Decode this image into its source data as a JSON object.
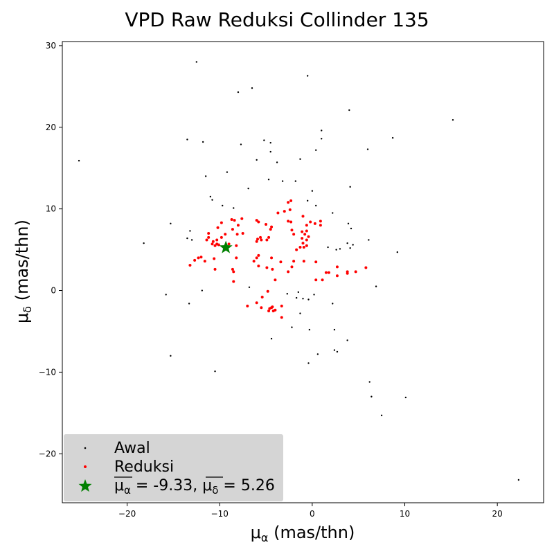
{
  "chart_data": {
    "type": "scatter",
    "title": "VPD Raw Reduksi Collinder 135",
    "xlabel": "μα (mas/thn)",
    "ylabel": "μδ (mas/thn)",
    "xlim": [
      -27,
      25
    ],
    "ylim": [
      -26,
      30.5
    ],
    "xticks": [
      -20,
      -10,
      0,
      10,
      20
    ],
    "yticks": [
      -20,
      -10,
      0,
      10,
      20,
      30
    ],
    "xtick_labels": [
      "−20",
      "−10",
      "0",
      "10",
      "20"
    ],
    "ytick_labels": [
      "−20",
      "−10",
      "0",
      "10",
      "20",
      "30"
    ],
    "grid": false,
    "legend_position": "lower-left",
    "colors": {
      "awal": "#000000",
      "reduksi": "#ff0000",
      "mean": "#008000",
      "legend_bg": "#d3d3d3"
    },
    "series": [
      {
        "name": "Awal",
        "marker": "point",
        "points": [
          [
            -12.5,
            28.0
          ],
          [
            -0.5,
            26.3
          ],
          [
            -8.0,
            24.3
          ],
          [
            -6.5,
            24.8
          ],
          [
            4.0,
            22.1
          ],
          [
            15.2,
            20.9
          ],
          [
            1.0,
            19.6
          ],
          [
            1.0,
            18.6
          ],
          [
            8.7,
            18.7
          ],
          [
            -13.5,
            18.5
          ],
          [
            -11.8,
            18.2
          ],
          [
            -5.2,
            18.4
          ],
          [
            -4.5,
            18.1
          ],
          [
            -7.7,
            17.9
          ],
          [
            -4.5,
            17.0
          ],
          [
            0.4,
            17.2
          ],
          [
            6.0,
            17.3
          ],
          [
            -25.2,
            15.9
          ],
          [
            -6.0,
            16.0
          ],
          [
            -3.8,
            15.7
          ],
          [
            -1.3,
            16.1
          ],
          [
            -9.2,
            14.5
          ],
          [
            -11.5,
            14.0
          ],
          [
            -4.7,
            13.6
          ],
          [
            -3.2,
            13.4
          ],
          [
            -1.8,
            13.4
          ],
          [
            -6.9,
            12.5
          ],
          [
            0.0,
            12.2
          ],
          [
            4.1,
            12.7
          ],
          [
            -11.0,
            11.5
          ],
          [
            -10.8,
            11.1
          ],
          [
            -9.7,
            10.4
          ],
          [
            -8.5,
            10.1
          ],
          [
            -0.5,
            11.0
          ],
          [
            0.4,
            10.4
          ],
          [
            2.2,
            9.5
          ],
          [
            -15.3,
            8.2
          ],
          [
            -13.2,
            7.3
          ],
          [
            -13.0,
            6.2
          ],
          [
            -13.5,
            6.4
          ],
          [
            -18.2,
            5.8
          ],
          [
            3.9,
            8.2
          ],
          [
            4.2,
            7.6
          ],
          [
            6.1,
            6.2
          ],
          [
            1.7,
            5.3
          ],
          [
            2.6,
            5.0
          ],
          [
            3.0,
            5.1
          ],
          [
            3.8,
            5.8
          ],
          [
            4.1,
            5.2
          ],
          [
            4.4,
            5.6
          ],
          [
            9.2,
            4.7
          ],
          [
            -15.8,
            -0.5
          ],
          [
            -11.9,
            0.0
          ],
          [
            -13.3,
            -1.6
          ],
          [
            -6.8,
            0.4
          ],
          [
            -2.7,
            -0.4
          ],
          [
            -1.5,
            -0.2
          ],
          [
            -1.7,
            -0.9
          ],
          [
            -1.0,
            -1.0
          ],
          [
            -0.4,
            -1.1
          ],
          [
            0.2,
            -0.5
          ],
          [
            2.2,
            -1.6
          ],
          [
            6.9,
            0.5
          ],
          [
            -15.3,
            -8.0
          ],
          [
            -10.5,
            -9.9
          ],
          [
            -4.4,
            -5.9
          ],
          [
            -2.2,
            -4.5
          ],
          [
            -1.3,
            -2.8
          ],
          [
            -0.3,
            -4.8
          ],
          [
            2.4,
            -4.8
          ],
          [
            3.8,
            -6.1
          ],
          [
            2.4,
            -7.3
          ],
          [
            2.7,
            -7.5
          ],
          [
            0.6,
            -7.8
          ],
          [
            -0.4,
            -8.9
          ],
          [
            6.2,
            -11.2
          ],
          [
            6.4,
            -13.0
          ],
          [
            10.1,
            -13.1
          ],
          [
            7.5,
            -15.3
          ],
          [
            22.3,
            -23.2
          ]
        ]
      },
      {
        "name": "Reduksi",
        "marker": "dot",
        "points": [
          [
            -2.3,
            11.0
          ],
          [
            -2.6,
            10.8
          ],
          [
            -2.4,
            9.9
          ],
          [
            -3.0,
            9.7
          ],
          [
            -3.7,
            9.5
          ],
          [
            -1.0,
            9.1
          ],
          [
            -7.6,
            8.8
          ],
          [
            -8.7,
            8.7
          ],
          [
            -8.4,
            8.6
          ],
          [
            -6.0,
            8.6
          ],
          [
            -5.8,
            8.4
          ],
          [
            -9.8,
            8.3
          ],
          [
            -5.0,
            8.1
          ],
          [
            -8.0,
            8.0
          ],
          [
            -2.6,
            8.5
          ],
          [
            -2.3,
            8.4
          ],
          [
            -0.2,
            8.4
          ],
          [
            0.3,
            8.2
          ],
          [
            -0.6,
            8.0
          ],
          [
            0.9,
            8.5
          ],
          [
            0.9,
            8.0
          ],
          [
            -10.2,
            7.7
          ],
          [
            -8.6,
            7.5
          ],
          [
            -4.4,
            7.8
          ],
          [
            -4.5,
            7.5
          ],
          [
            -2.2,
            7.4
          ],
          [
            -2.0,
            6.9
          ],
          [
            -1.1,
            7.2
          ],
          [
            -0.6,
            7.3
          ],
          [
            -0.8,
            6.9
          ],
          [
            -1.1,
            6.4
          ],
          [
            -0.6,
            6.2
          ],
          [
            -0.4,
            6.6
          ],
          [
            -11.2,
            7.0
          ],
          [
            -11.2,
            6.5
          ],
          [
            -11.4,
            6.2
          ],
          [
            -10.3,
            6.2
          ],
          [
            -10.7,
            6.0
          ],
          [
            -9.4,
            6.9
          ],
          [
            -9.8,
            6.5
          ],
          [
            -8.1,
            6.9
          ],
          [
            -7.5,
            7.0
          ],
          [
            -9.0,
            5.7
          ],
          [
            -8.2,
            5.5
          ],
          [
            -10.1,
            5.6
          ],
          [
            -10.3,
            5.7
          ],
          [
            -10.5,
            5.5
          ],
          [
            -10.8,
            5.7
          ],
          [
            -6.0,
            6.0
          ],
          [
            -5.6,
            6.5
          ],
          [
            -5.9,
            6.3
          ],
          [
            -5.5,
            6.2
          ],
          [
            -4.7,
            6.5
          ],
          [
            -4.9,
            6.2
          ],
          [
            -1.7,
            5.0
          ],
          [
            -1.3,
            5.3
          ],
          [
            -0.9,
            5.3
          ],
          [
            -0.6,
            5.5
          ],
          [
            -1.0,
            5.8
          ],
          [
            -12.0,
            4.1
          ],
          [
            -12.3,
            4.0
          ],
          [
            -11.6,
            3.6
          ],
          [
            -10.6,
            3.9
          ],
          [
            -13.2,
            3.1
          ],
          [
            -12.7,
            3.7
          ],
          [
            -8.2,
            4.0
          ],
          [
            -6.0,
            4.0
          ],
          [
            -5.8,
            4.3
          ],
          [
            -6.3,
            3.6
          ],
          [
            -4.4,
            4.0
          ],
          [
            -2.0,
            3.6
          ],
          [
            -3.4,
            3.5
          ],
          [
            -0.9,
            3.6
          ],
          [
            0.4,
            3.5
          ],
          [
            -10.5,
            2.6
          ],
          [
            -8.6,
            2.6
          ],
          [
            -8.5,
            2.3
          ],
          [
            -4.3,
            2.6
          ],
          [
            -4.9,
            2.8
          ],
          [
            -5.8,
            3.0
          ],
          [
            -2.6,
            2.3
          ],
          [
            -2.2,
            2.9
          ],
          [
            2.7,
            2.9
          ],
          [
            1.5,
            2.2
          ],
          [
            1.8,
            2.2
          ],
          [
            3.8,
            2.1
          ],
          [
            3.8,
            2.3
          ],
          [
            4.7,
            2.3
          ],
          [
            5.8,
            2.8
          ],
          [
            -8.5,
            1.1
          ],
          [
            -4.0,
            1.3
          ],
          [
            0.4,
            1.3
          ],
          [
            1.1,
            1.3
          ],
          [
            2.7,
            1.8
          ],
          [
            -5.4,
            -0.8
          ],
          [
            -4.8,
            -0.1
          ],
          [
            -6.0,
            -1.5
          ],
          [
            -5.5,
            -2.1
          ],
          [
            -7.0,
            -1.9
          ],
          [
            -4.7,
            -2.5
          ],
          [
            -4.6,
            -2.2
          ],
          [
            -4.4,
            -2.1
          ],
          [
            -4.3,
            -2.0
          ],
          [
            -4.0,
            -2.4
          ],
          [
            -4.2,
            -2.5
          ],
          [
            -3.3,
            -1.9
          ],
          [
            -3.3,
            -3.3
          ]
        ]
      },
      {
        "name": "μα = -9.33, μδ = 5.26",
        "marker": "star",
        "points": [
          [
            -9.33,
            5.26
          ]
        ]
      }
    ],
    "legend": {
      "entries": [
        "Awal",
        "Reduksi"
      ],
      "mean_label": {
        "mu_a": "μ",
        "sub_a": "α",
        "eq_a": " = -9.33, ",
        "mu_d": "μ",
        "sub_d": "δ",
        "eq_d": " = 5.26"
      }
    }
  }
}
